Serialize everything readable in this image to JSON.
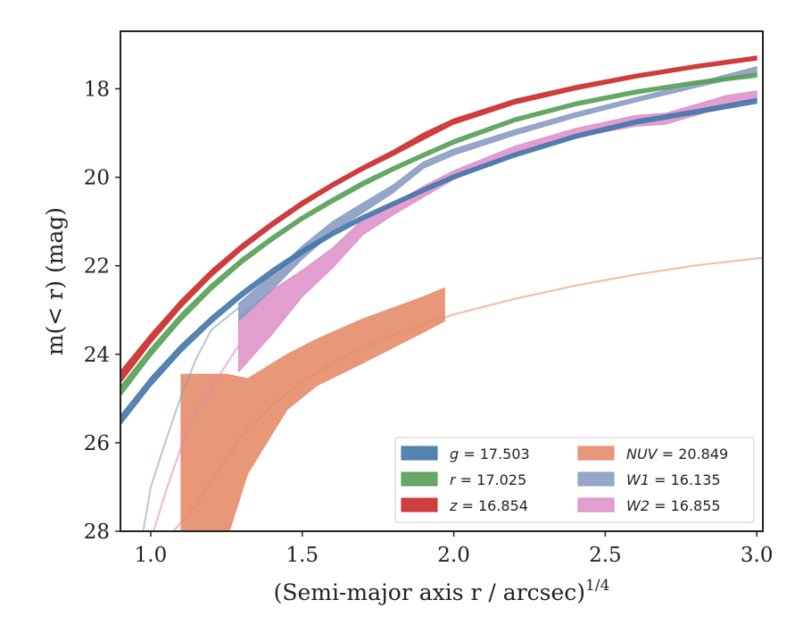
{
  "chart_data": {
    "type": "area",
    "xlabel": "(Semi-major axis r / arcsec)",
    "xlabel_superscript": "1/4",
    "ylabel": "m(< r) (mag)",
    "xlim": [
      0.9,
      3.02
    ],
    "ylim": [
      28,
      16.7
    ],
    "y_inverted": true,
    "x_ticks": [
      1.0,
      1.5,
      2.0,
      2.5,
      3.0
    ],
    "x_tick_labels": [
      "1.0",
      "1.5",
      "2.0",
      "2.5",
      "3.0"
    ],
    "y_ticks": [
      18,
      20,
      22,
      24,
      26,
      28
    ],
    "y_tick_labels": [
      "18",
      "20",
      "22",
      "24",
      "26",
      "28"
    ],
    "grid": false,
    "legend_position": "lower-right",
    "series": [
      {
        "key": "g",
        "italic": "g",
        "rest": " = 17.503",
        "color": "#4477aa",
        "alpha": 0.9,
        "band": [
          [
            0.9,
            25.6,
            25.38
          ],
          [
            1.0,
            24.72,
            24.52
          ],
          [
            1.1,
            23.96,
            23.78
          ],
          [
            1.2,
            23.3,
            23.14
          ],
          [
            1.3,
            22.72,
            22.58
          ],
          [
            1.4,
            22.2,
            22.07
          ],
          [
            1.5,
            21.74,
            21.62
          ],
          [
            1.6,
            21.33,
            21.22
          ],
          [
            1.7,
            20.97,
            20.86
          ],
          [
            1.8,
            20.65,
            20.55
          ],
          [
            1.9,
            20.34,
            20.24
          ],
          [
            2.0,
            20.04,
            19.94
          ],
          [
            2.2,
            19.55,
            19.45
          ],
          [
            2.4,
            19.13,
            19.03
          ],
          [
            2.6,
            18.8,
            18.7
          ],
          [
            2.8,
            18.57,
            18.47
          ],
          [
            3.0,
            18.33,
            18.22
          ]
        ]
      },
      {
        "key": "r",
        "italic": "r",
        "rest": " = 17.025",
        "color": "#55a055",
        "alpha": 0.9,
        "band": [
          [
            0.9,
            24.95,
            24.72
          ],
          [
            1.0,
            24.05,
            23.86
          ],
          [
            1.1,
            23.25,
            23.08
          ],
          [
            1.2,
            22.56,
            22.41
          ],
          [
            1.3,
            21.96,
            21.83
          ],
          [
            1.4,
            21.45,
            21.33
          ],
          [
            1.5,
            20.98,
            20.87
          ],
          [
            1.6,
            20.58,
            20.47
          ],
          [
            1.7,
            20.2,
            20.09
          ],
          [
            1.8,
            19.86,
            19.76
          ],
          [
            1.9,
            19.55,
            19.45
          ],
          [
            2.0,
            19.25,
            19.15
          ],
          [
            2.2,
            18.75,
            18.66
          ],
          [
            2.4,
            18.39,
            18.3
          ],
          [
            2.6,
            18.12,
            18.03
          ],
          [
            2.8,
            17.9,
            17.82
          ],
          [
            3.0,
            17.74,
            17.65
          ]
        ]
      },
      {
        "key": "z",
        "italic": "z",
        "rest": " = 16.854",
        "color": "#cc3333",
        "alpha": 0.95,
        "band": [
          [
            0.9,
            24.65,
            24.38
          ],
          [
            1.0,
            23.75,
            23.54
          ],
          [
            1.1,
            22.95,
            22.77
          ],
          [
            1.2,
            22.25,
            22.09
          ],
          [
            1.3,
            21.65,
            21.51
          ],
          [
            1.4,
            21.13,
            21.0
          ],
          [
            1.5,
            20.65,
            20.53
          ],
          [
            1.6,
            20.23,
            20.12
          ],
          [
            1.7,
            19.85,
            19.74
          ],
          [
            1.8,
            19.51,
            19.39
          ],
          [
            1.9,
            19.15,
            19.0
          ],
          [
            2.0,
            18.8,
            18.68
          ],
          [
            2.2,
            18.35,
            18.24
          ],
          [
            2.4,
            18.03,
            17.93
          ],
          [
            2.6,
            17.76,
            17.67
          ],
          [
            2.8,
            17.54,
            17.45
          ],
          [
            3.0,
            17.35,
            17.26
          ]
        ]
      },
      {
        "key": "NUV",
        "italic": "NUV",
        "rest": " = 20.849",
        "color": "#e58a66",
        "alpha": 0.88,
        "band": [
          [
            1.1,
            28.2,
            24.45
          ],
          [
            1.2,
            28.2,
            24.45
          ],
          [
            1.25,
            28.2,
            24.45
          ],
          [
            1.32,
            26.7,
            24.55
          ],
          [
            1.45,
            25.25,
            24.0
          ],
          [
            1.55,
            24.7,
            23.65
          ],
          [
            1.7,
            24.2,
            23.2
          ],
          [
            1.8,
            23.85,
            22.95
          ],
          [
            1.9,
            23.5,
            22.7
          ],
          [
            1.97,
            23.25,
            22.5
          ]
        ],
        "model": [
          [
            1.05,
            28.2
          ],
          [
            1.15,
            27.4
          ],
          [
            1.2,
            26.85
          ],
          [
            1.3,
            25.85
          ],
          [
            1.4,
            25.15
          ],
          [
            1.5,
            24.62
          ],
          [
            1.6,
            24.2
          ],
          [
            1.7,
            23.85
          ],
          [
            1.8,
            23.57
          ],
          [
            1.9,
            23.32
          ],
          [
            2.0,
            23.1
          ],
          [
            2.2,
            22.75
          ],
          [
            2.4,
            22.45
          ],
          [
            2.6,
            22.2
          ],
          [
            2.8,
            21.99
          ],
          [
            3.02,
            21.82
          ]
        ]
      },
      {
        "key": "W1",
        "italic": "W1",
        "rest": " = 16.135",
        "color": "#8a9cc2",
        "alpha": 0.9,
        "band": [
          [
            1.29,
            23.25,
            22.85
          ],
          [
            1.4,
            22.55,
            22.2
          ],
          [
            1.5,
            21.85,
            21.55
          ],
          [
            1.6,
            21.25,
            21.0
          ],
          [
            1.7,
            20.8,
            20.58
          ],
          [
            1.8,
            20.35,
            20.17
          ],
          [
            1.9,
            19.8,
            19.65
          ],
          [
            2.0,
            19.5,
            19.36
          ],
          [
            2.2,
            19.05,
            18.93
          ],
          [
            2.4,
            18.65,
            18.54
          ],
          [
            2.6,
            18.3,
            18.2
          ],
          [
            2.8,
            17.97,
            17.86
          ],
          [
            3.0,
            17.65,
            17.5
          ]
        ],
        "model": [
          [
            0.97,
            28.2
          ],
          [
            1.0,
            27.0
          ],
          [
            1.05,
            25.95
          ],
          [
            1.1,
            24.95
          ],
          [
            1.15,
            24.1
          ],
          [
            1.2,
            23.45
          ],
          [
            1.29,
            22.95
          ]
        ]
      },
      {
        "key": "W2",
        "italic": "W2",
        "rest": " = 16.855",
        "color": "#d983c1",
        "alpha": 0.78,
        "band": [
          [
            1.29,
            24.4,
            23.15
          ],
          [
            1.4,
            23.55,
            22.55
          ],
          [
            1.5,
            22.7,
            22.1
          ],
          [
            1.6,
            22.05,
            21.6
          ],
          [
            1.7,
            21.3,
            20.95
          ],
          [
            1.8,
            20.85,
            20.6
          ],
          [
            1.9,
            20.45,
            20.2
          ],
          [
            2.0,
            20.05,
            19.85
          ],
          [
            2.2,
            19.5,
            19.3
          ],
          [
            2.4,
            19.1,
            18.9
          ],
          [
            2.6,
            18.85,
            18.6
          ],
          [
            2.7,
            18.8,
            18.55
          ],
          [
            2.8,
            18.6,
            18.35
          ],
          [
            2.9,
            18.4,
            18.15
          ],
          [
            3.0,
            18.25,
            18.05
          ]
        ],
        "model": [
          [
            1.0,
            28.2
          ],
          [
            1.05,
            27.1
          ],
          [
            1.1,
            26.1
          ],
          [
            1.15,
            25.3
          ],
          [
            1.2,
            24.75
          ],
          [
            1.29,
            23.8
          ]
        ]
      }
    ]
  }
}
